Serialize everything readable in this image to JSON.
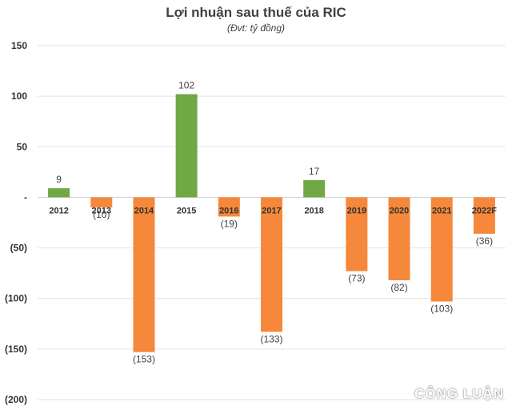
{
  "chart_data": {
    "type": "bar",
    "title": "Lợi nhuận sau thuế của RIC",
    "subtitle": "(Đvt: tỷ đồng)",
    "categories": [
      "2012",
      "2013",
      "2014",
      "2015",
      "2016",
      "2017",
      "2018",
      "2019",
      "2020",
      "2021",
      "2022F"
    ],
    "values": [
      9,
      -10,
      -153,
      102,
      -19,
      -133,
      17,
      -73,
      -82,
      -103,
      -36
    ],
    "data_labels": [
      "9",
      "(10)",
      "(153)",
      "102",
      "(19)",
      "(133)",
      "17",
      "(73)",
      "(82)",
      "(103)",
      "(36)"
    ],
    "ylim": [
      -200,
      150
    ],
    "yticks": [
      150,
      100,
      50,
      0,
      -50,
      -100,
      -150,
      -200
    ],
    "ytick_labels": [
      "150",
      "100",
      "50",
      "-",
      "(50)",
      "(100)",
      "(150)",
      "(200)"
    ],
    "xlabel": "",
    "ylabel": "",
    "grid": true,
    "colors": {
      "positive": "#70a844",
      "negative": "#f5883a"
    }
  },
  "watermark": "CÔNG LUẬN"
}
